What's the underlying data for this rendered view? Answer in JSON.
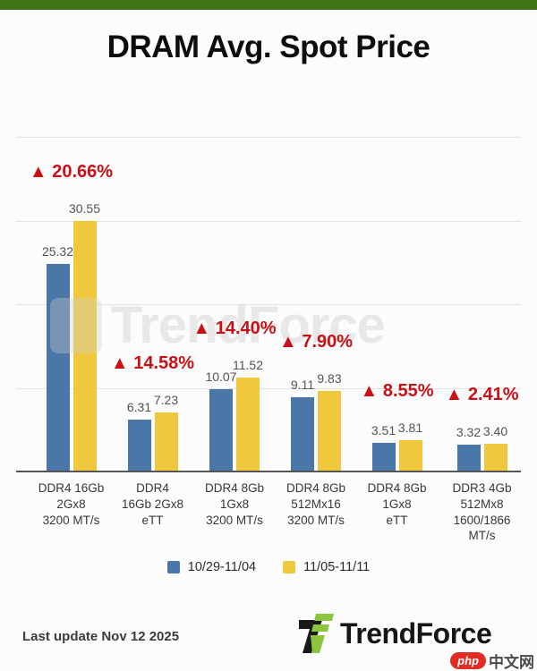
{
  "colors": {
    "top_bar_green": "#3f7518",
    "bar_blue": "#4a76a8",
    "bar_yellow": "#efc83e",
    "change_red": "#c81016"
  },
  "header": {
    "title": "DRAM Avg. Spot Price"
  },
  "chart_data": {
    "type": "bar",
    "title": "DRAM Avg. Spot Price",
    "categories": [
      "DDR4 16Gb\n2Gx8\n3200 MT/s",
      "DDR4\n16Gb 2Gx8\neTT",
      "DDR4 8Gb\n1Gx8\n3200 MT/s",
      "DDR4 8Gb\n512Mx16\n3200 MT/s",
      "DDR4 8Gb\n1Gx8\neTT",
      "DDR3 4Gb\n512Mx8\n1600/1866\nMT/s"
    ],
    "series": [
      {
        "name": "10/29-11/04",
        "color": "#4a76a8",
        "values": [
          25.32,
          6.31,
          10.07,
          9.11,
          3.51,
          3.32
        ]
      },
      {
        "name": "11/05-11/11",
        "color": "#efc83e",
        "values": [
          30.55,
          7.23,
          11.52,
          9.83,
          3.81,
          3.4
        ]
      }
    ],
    "value_labels": [
      [
        "25.32",
        "6.31",
        "10.07",
        "9.11",
        "3.51",
        "3.32"
      ],
      [
        "30.55",
        "7.23",
        "11.52",
        "9.83",
        "3.81",
        "3.40"
      ]
    ],
    "change_arrow": "▲",
    "change_labels": [
      "20.66%",
      "14.58%",
      "14.40%",
      "7.90%",
      "8.55%",
      "2.41%"
    ],
    "xlabel": "",
    "ylabel": "",
    "ylim": [
      0,
      40
    ],
    "grid": true,
    "legend_position": "bottom"
  },
  "watermark": {
    "text": "TrendForce"
  },
  "footer": {
    "last_update": "Last update Nov 12  2025",
    "brand": "TrendForce",
    "badge": {
      "php": "php",
      "cn": "中文网"
    }
  }
}
